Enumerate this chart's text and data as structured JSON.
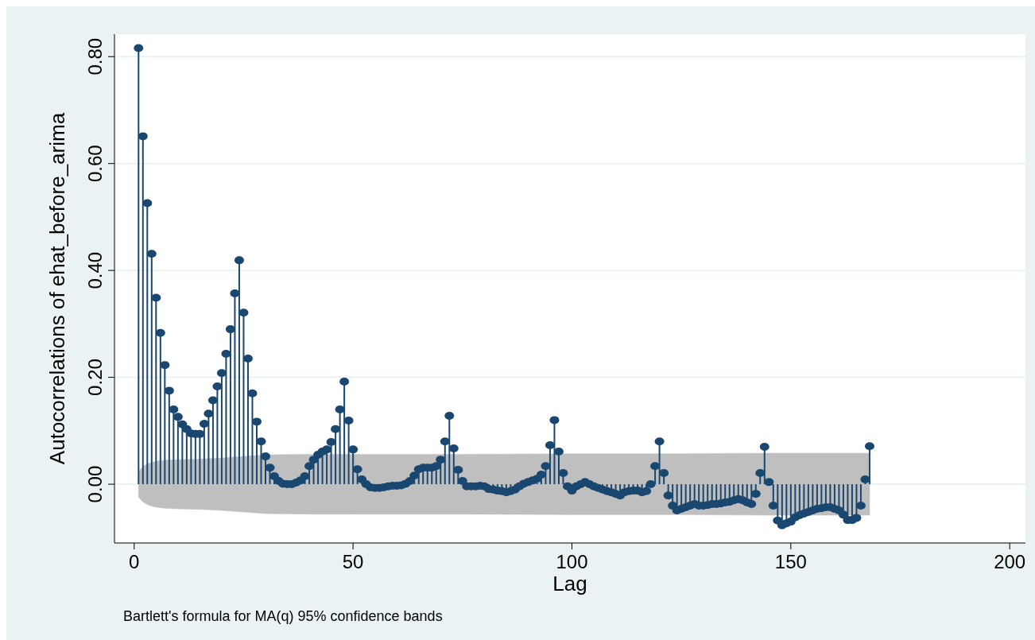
{
  "chart_data": {
    "type": "lollipop",
    "xlabel": "Lag",
    "ylabel": "Autocorrelations of ehat_before_arima",
    "annotations": [
      "Bartlett's formula for MA(q) 95% confidence bands"
    ],
    "xlim": [
      -4.5,
      203.6
    ],
    "xticks": [
      0,
      50,
      100,
      150,
      200
    ],
    "ylim": [
      -0.11,
      0.842
    ],
    "yticks": [
      {
        "value": 0,
        "label": "0.00"
      },
      {
        "value": 0.2,
        "label": "0.20"
      },
      {
        "value": 0.4,
        "label": "0.40"
      },
      {
        "value": 0.6,
        "label": "0.60"
      },
      {
        "value": 0.8,
        "label": "0.80"
      }
    ],
    "grid": "y",
    "series": [
      {
        "type": "area",
        "color": "#bfbfbf",
        "x": [
          1,
          2,
          3,
          4,
          5,
          7,
          10,
          15,
          20,
          25,
          30,
          40,
          50,
          75,
          100,
          125,
          145,
          168
        ],
        "values": [
          0.024,
          0.033,
          0.038,
          0.041,
          0.043,
          0.045,
          0.046,
          0.047,
          0.049,
          0.052,
          0.055,
          0.056,
          0.056,
          0.056,
          0.057,
          0.057,
          0.058,
          0.058
        ]
      },
      {
        "type": "area",
        "color": "#bfbfbf",
        "x": [
          1,
          2,
          3,
          4,
          5,
          7,
          10,
          15,
          20,
          25,
          30,
          40,
          50,
          75,
          100,
          125,
          145,
          168
        ],
        "values": [
          -0.024,
          -0.033,
          -0.038,
          -0.041,
          -0.043,
          -0.045,
          -0.046,
          -0.047,
          -0.049,
          -0.052,
          -0.055,
          -0.056,
          -0.056,
          -0.056,
          -0.057,
          -0.057,
          -0.058,
          -0.058
        ]
      },
      {
        "marker": "circle",
        "color": "#1a476f",
        "x": [
          1,
          2,
          3,
          4,
          5,
          6,
          7,
          8,
          9,
          10,
          11,
          12,
          13,
          14,
          15,
          16,
          17,
          18,
          19,
          20,
          21,
          22,
          23,
          24,
          25,
          26,
          27,
          28,
          29,
          30,
          31,
          32,
          33,
          34,
          35,
          36,
          37,
          38,
          39,
          40,
          41,
          42,
          43,
          44,
          45,
          46,
          47,
          48,
          49,
          50,
          51,
          52,
          53,
          54,
          55,
          56,
          57,
          58,
          59,
          60,
          61,
          62,
          63,
          64,
          65,
          66,
          67,
          68,
          69,
          70,
          71,
          72,
          73,
          74,
          75,
          76,
          77,
          78,
          79,
          80,
          81,
          82,
          83,
          84,
          85,
          86,
          87,
          88,
          89,
          90,
          91,
          92,
          93,
          94,
          95,
          96,
          97,
          98,
          99,
          100,
          101,
          102,
          103,
          104,
          105,
          106,
          107,
          108,
          109,
          110,
          111,
          112,
          113,
          114,
          115,
          116,
          117,
          118,
          119,
          120,
          121,
          122,
          123,
          124,
          125,
          126,
          127,
          128,
          129,
          130,
          131,
          132,
          133,
          134,
          135,
          136,
          137,
          138,
          139,
          140,
          141,
          142,
          143,
          144,
          145,
          146,
          147,
          148,
          149,
          150,
          151,
          152,
          153,
          154,
          155,
          156,
          157,
          158,
          159,
          160,
          161,
          162,
          163,
          164,
          165,
          166,
          167,
          168
        ],
        "values": [
          0.816,
          0.651,
          0.526,
          0.431,
          0.349,
          0.283,
          0.223,
          0.175,
          0.14,
          0.126,
          0.112,
          0.103,
          0.095,
          0.094,
          0.094,
          0.113,
          0.132,
          0.157,
          0.183,
          0.208,
          0.244,
          0.29,
          0.357,
          0.419,
          0.321,
          0.235,
          0.17,
          0.117,
          0.08,
          0.052,
          0.031,
          0.015,
          0.006,
          0.001,
          0,
          0,
          0.003,
          0.007,
          0.015,
          0.034,
          0.046,
          0.055,
          0.061,
          0.065,
          0.079,
          0.103,
          0.14,
          0.192,
          0.119,
          0.065,
          0.028,
          0.009,
          0,
          -0.006,
          -0.007,
          -0.007,
          -0.006,
          -0.004,
          -0.003,
          -0.003,
          -0.002,
          0.001,
          0.006,
          0.016,
          0.028,
          0.031,
          0.031,
          0.031,
          0.034,
          0.046,
          0.08,
          0.128,
          0.067,
          0.027,
          0.006,
          -0.004,
          -0.004,
          -0.004,
          -0.003,
          -0.004,
          -0.009,
          -0.01,
          -0.012,
          -0.013,
          -0.015,
          -0.013,
          -0.01,
          -0.004,
          0.001,
          0.004,
          0.007,
          0.01,
          0.018,
          0.034,
          0.073,
          0.12,
          0.061,
          0.021,
          -0.004,
          -0.012,
          -0.004,
          0,
          0.004,
          0,
          -0.004,
          -0.007,
          -0.01,
          -0.013,
          -0.015,
          -0.018,
          -0.021,
          -0.015,
          -0.013,
          -0.012,
          -0.012,
          -0.015,
          -0.013,
          0,
          0.034,
          0.08,
          0.021,
          -0.021,
          -0.04,
          -0.049,
          -0.046,
          -0.043,
          -0.04,
          -0.037,
          -0.04,
          -0.04,
          -0.039,
          -0.037,
          -0.037,
          -0.036,
          -0.034,
          -0.033,
          -0.03,
          -0.028,
          -0.03,
          -0.034,
          -0.037,
          -0.018,
          0.021,
          0.07,
          0.004,
          -0.04,
          -0.068,
          -0.077,
          -0.073,
          -0.07,
          -0.062,
          -0.058,
          -0.055,
          -0.052,
          -0.049,
          -0.046,
          -0.045,
          -0.043,
          -0.043,
          -0.046,
          -0.049,
          -0.057,
          -0.067,
          -0.067,
          -0.063,
          -0.04,
          0.009,
          0.071
        ]
      }
    ]
  }
}
